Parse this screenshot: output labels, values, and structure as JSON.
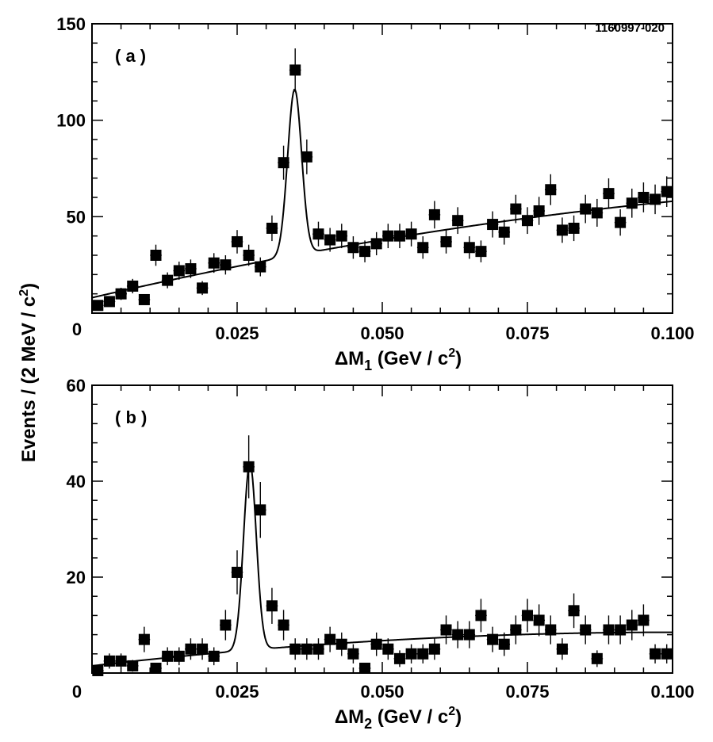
{
  "figure_id": "1160997-020",
  "y_axis_label": {
    "text": "Events / (2 MeV / c",
    "sup": "2",
    "close": ")"
  },
  "chart_data": [
    {
      "type": "scatter",
      "panel_label": "( a )",
      "xlabel": {
        "delta": "Δ",
        "main": "M",
        "sub": "1",
        "unit": " (GeV / c",
        "sup": "2",
        "close": ")"
      },
      "xlim": [
        0.0,
        0.1
      ],
      "ylim": [
        0,
        150
      ],
      "xticks": [
        {
          "value": 0.025,
          "label": "0.025"
        },
        {
          "value": 0.05,
          "label": "0.050"
        },
        {
          "value": 0.075,
          "label": "0.075"
        },
        {
          "value": 0.1,
          "label": "0.100"
        }
      ],
      "yticks": [
        {
          "value": 50,
          "label": "50"
        },
        {
          "value": 100,
          "label": "100"
        },
        {
          "value": 150,
          "label": "150"
        }
      ],
      "y_zero_label": "0",
      "points": [
        [
          0.001,
          4
        ],
        [
          0.003,
          6
        ],
        [
          0.005,
          10
        ],
        [
          0.007,
          14
        ],
        [
          0.009,
          7
        ],
        [
          0.011,
          30
        ],
        [
          0.013,
          17
        ],
        [
          0.015,
          22
        ],
        [
          0.017,
          23
        ],
        [
          0.019,
          13
        ],
        [
          0.021,
          26
        ],
        [
          0.023,
          25
        ],
        [
          0.025,
          37
        ],
        [
          0.027,
          30
        ],
        [
          0.029,
          24
        ],
        [
          0.031,
          44
        ],
        [
          0.033,
          78
        ],
        [
          0.035,
          126
        ],
        [
          0.037,
          81
        ],
        [
          0.039,
          41
        ],
        [
          0.041,
          38
        ],
        [
          0.043,
          40
        ],
        [
          0.045,
          34
        ],
        [
          0.047,
          32
        ],
        [
          0.049,
          36
        ],
        [
          0.051,
          40
        ],
        [
          0.053,
          40
        ],
        [
          0.055,
          41
        ],
        [
          0.057,
          34
        ],
        [
          0.059,
          51
        ],
        [
          0.061,
          37
        ],
        [
          0.063,
          48
        ],
        [
          0.065,
          34
        ],
        [
          0.067,
          32
        ],
        [
          0.069,
          46
        ],
        [
          0.071,
          42
        ],
        [
          0.073,
          54
        ],
        [
          0.075,
          48
        ],
        [
          0.077,
          53
        ],
        [
          0.079,
          64
        ],
        [
          0.081,
          43
        ],
        [
          0.083,
          44
        ],
        [
          0.085,
          54
        ],
        [
          0.087,
          52
        ],
        [
          0.089,
          62
        ],
        [
          0.091,
          47
        ],
        [
          0.093,
          57
        ],
        [
          0.095,
          60
        ],
        [
          0.097,
          59
        ],
        [
          0.099,
          63
        ]
      ],
      "fit": {
        "background": {
          "intercept": 8,
          "slope": 700,
          "curvature": -2000
        },
        "peak": {
          "mean": 0.0349,
          "sigma": 0.0012,
          "amplitude": 86
        }
      }
    },
    {
      "type": "scatter",
      "panel_label": "( b )",
      "xlabel": {
        "delta": "Δ",
        "main": "M",
        "sub": "2",
        "unit": " (GeV / c",
        "sup": "2",
        "close": ")"
      },
      "xlim": [
        0.0,
        0.1
      ],
      "ylim": [
        0,
        60
      ],
      "xticks": [
        {
          "value": 0.025,
          "label": "0.025"
        },
        {
          "value": 0.05,
          "label": "0.050"
        },
        {
          "value": 0.075,
          "label": "0.075"
        },
        {
          "value": 0.1,
          "label": "0.100"
        }
      ],
      "yticks": [
        {
          "value": 20,
          "label": "20"
        },
        {
          "value": 40,
          "label": "40"
        },
        {
          "value": 60,
          "label": "60"
        }
      ],
      "y_zero_label": "0",
      "x_zero_label": "0",
      "points": [
        [
          0.001,
          0.5
        ],
        [
          0.003,
          2.5
        ],
        [
          0.005,
          2.5
        ],
        [
          0.007,
          1.5
        ],
        [
          0.009,
          7
        ],
        [
          0.011,
          1
        ],
        [
          0.013,
          3.5
        ],
        [
          0.015,
          3.5
        ],
        [
          0.017,
          5
        ],
        [
          0.019,
          5
        ],
        [
          0.021,
          3.5
        ],
        [
          0.023,
          10
        ],
        [
          0.025,
          21
        ],
        [
          0.027,
          43
        ],
        [
          0.029,
          34
        ],
        [
          0.031,
          14
        ],
        [
          0.033,
          10
        ],
        [
          0.035,
          5
        ],
        [
          0.037,
          5
        ],
        [
          0.039,
          5
        ],
        [
          0.041,
          7
        ],
        [
          0.043,
          6
        ],
        [
          0.045,
          4
        ],
        [
          0.047,
          1
        ],
        [
          0.049,
          6
        ],
        [
          0.051,
          5
        ],
        [
          0.053,
          3
        ],
        [
          0.055,
          4
        ],
        [
          0.057,
          4
        ],
        [
          0.059,
          5
        ],
        [
          0.061,
          9
        ],
        [
          0.063,
          8
        ],
        [
          0.065,
          8
        ],
        [
          0.067,
          12
        ],
        [
          0.069,
          7
        ],
        [
          0.071,
          6
        ],
        [
          0.073,
          9
        ],
        [
          0.075,
          12
        ],
        [
          0.077,
          11
        ],
        [
          0.079,
          9
        ],
        [
          0.081,
          5
        ],
        [
          0.083,
          13
        ],
        [
          0.085,
          9
        ],
        [
          0.087,
          3
        ],
        [
          0.089,
          9
        ],
        [
          0.091,
          9
        ],
        [
          0.093,
          10
        ],
        [
          0.095,
          11
        ],
        [
          0.097,
          4
        ],
        [
          0.099,
          4
        ]
      ],
      "fit": {
        "background": {
          "intercept": 1.5,
          "slope": 140,
          "curvature": -700
        },
        "peak": {
          "mean": 0.0272,
          "sigma": 0.0011,
          "amplitude": 39
        }
      }
    }
  ]
}
